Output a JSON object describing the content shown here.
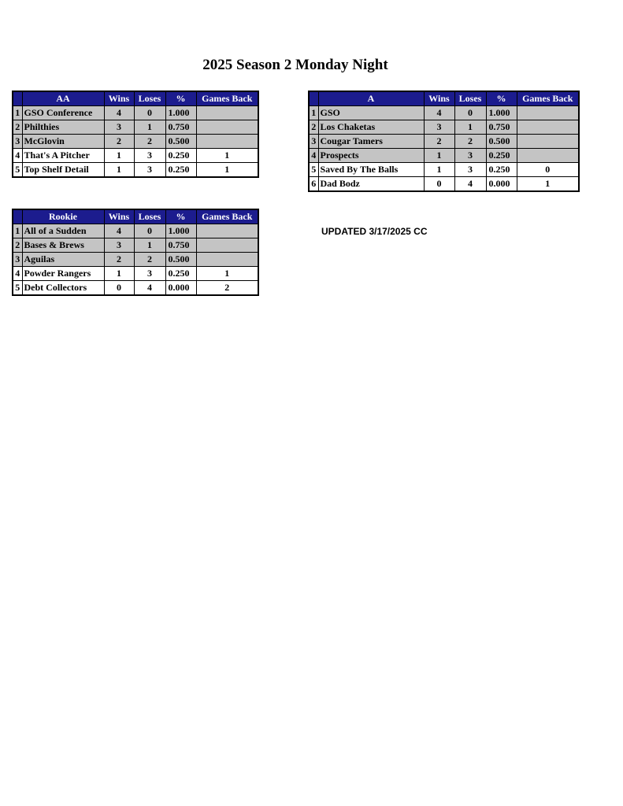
{
  "title": "2025 Season 2 Monday Night",
  "updated": "UPDATED 3/17/2025 CC",
  "colors": {
    "header": "#1c1c8e",
    "highlight_row": "#c4c4c4"
  },
  "columns": [
    "Wins",
    "Loses",
    "%",
    "Games Back"
  ],
  "divisions": {
    "aa": {
      "name": "AA",
      "rows": [
        {
          "rank": "1",
          "team": "GSO Conference",
          "wins": "4",
          "loses": "0",
          "pct": "1.000",
          "gb": "",
          "highlight": true
        },
        {
          "rank": "2",
          "team": "Philthies",
          "wins": "3",
          "loses": "1",
          "pct": "0.750",
          "gb": "",
          "highlight": true
        },
        {
          "rank": "3",
          "team": "McGlovin",
          "wins": "2",
          "loses": "2",
          "pct": "0.500",
          "gb": "",
          "highlight": true
        },
        {
          "rank": "4",
          "team": "That's A Pitcher",
          "wins": "1",
          "loses": "3",
          "pct": "0.250",
          "gb": "1",
          "highlight": false
        },
        {
          "rank": "5",
          "team": "Top Shelf Detail",
          "wins": "1",
          "loses": "3",
          "pct": "0.250",
          "gb": "1",
          "highlight": false
        }
      ]
    },
    "a": {
      "name": "A",
      "rows": [
        {
          "rank": "1",
          "team": "GSO",
          "wins": "4",
          "loses": "0",
          "pct": "1.000",
          "gb": "",
          "highlight": true
        },
        {
          "rank": "2",
          "team": "Los Chaketas",
          "wins": "3",
          "loses": "1",
          "pct": "0.750",
          "gb": "",
          "highlight": true
        },
        {
          "rank": "3",
          "team": "Cougar Tamers",
          "wins": "2",
          "loses": "2",
          "pct": "0.500",
          "gb": "",
          "highlight": true
        },
        {
          "rank": "4",
          "team": "Prospects",
          "wins": "1",
          "loses": "3",
          "pct": "0.250",
          "gb": "",
          "highlight": true
        },
        {
          "rank": "5",
          "team": "Saved By The Balls",
          "wins": "1",
          "loses": "3",
          "pct": "0.250",
          "gb": "0",
          "highlight": false
        },
        {
          "rank": "6",
          "team": "Dad Bodz",
          "wins": "0",
          "loses": "4",
          "pct": "0.000",
          "gb": "1",
          "highlight": false
        }
      ]
    },
    "rookie": {
      "name": "Rookie",
      "rows": [
        {
          "rank": "1",
          "team": "All of a Sudden",
          "wins": "4",
          "loses": "0",
          "pct": "1.000",
          "gb": "",
          "highlight": true
        },
        {
          "rank": "2",
          "team": "Bases & Brews",
          "wins": "3",
          "loses": "1",
          "pct": "0.750",
          "gb": "",
          "highlight": true
        },
        {
          "rank": "3",
          "team": "Aguilas",
          "wins": "2",
          "loses": "2",
          "pct": "0.500",
          "gb": "",
          "highlight": true
        },
        {
          "rank": "4",
          "team": "Powder Rangers",
          "wins": "1",
          "loses": "3",
          "pct": "0.250",
          "gb": "1",
          "highlight": false
        },
        {
          "rank": "5",
          "team": "Debt Collectors",
          "wins": "0",
          "loses": "4",
          "pct": "0.000",
          "gb": "2",
          "highlight": false
        }
      ]
    }
  }
}
